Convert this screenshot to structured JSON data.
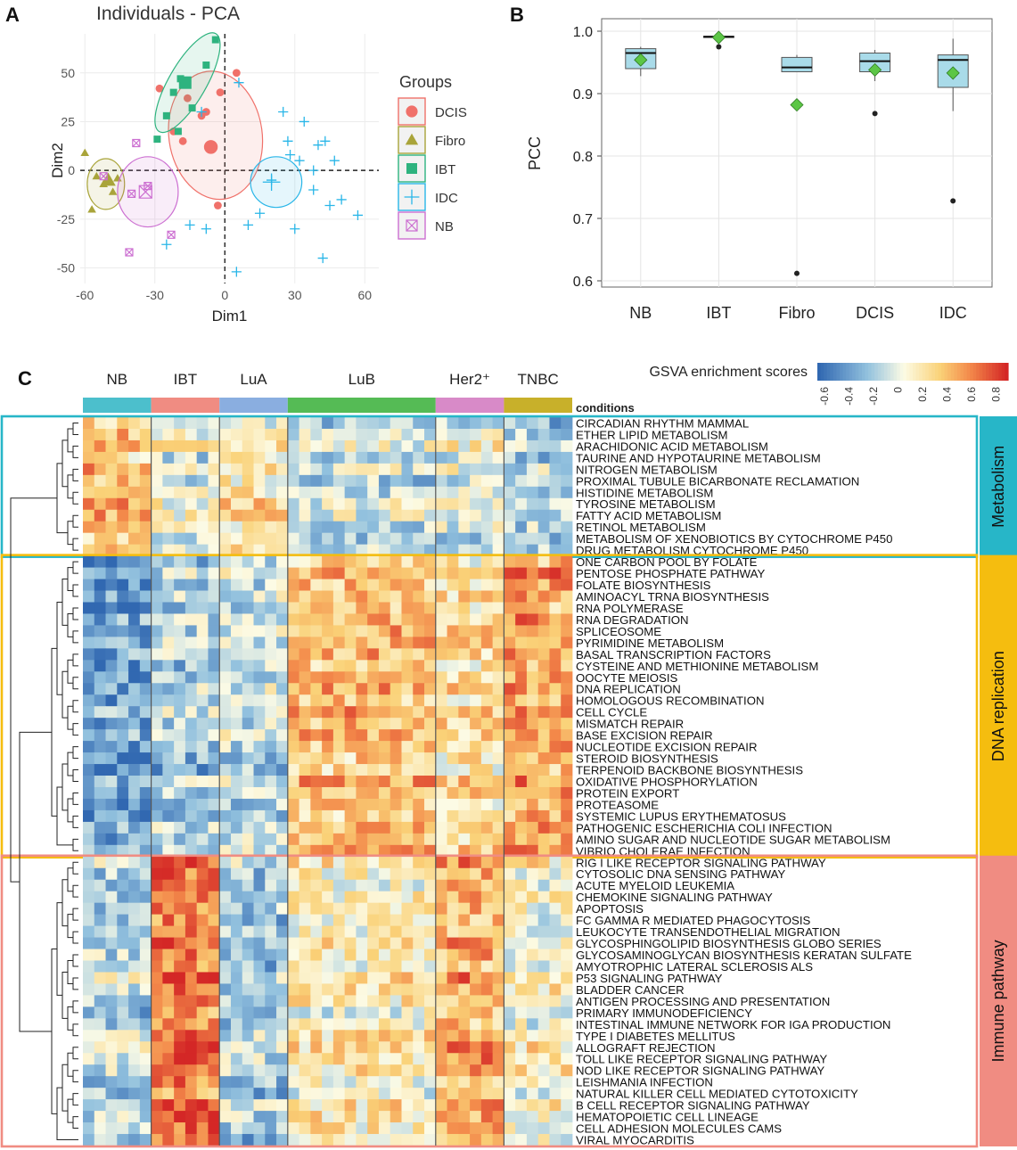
{
  "chart_data": [
    {
      "panel": "A",
      "type": "scatter",
      "title": "Individuals - PCA",
      "xlabel": "Dim1",
      "ylabel": "Dim2",
      "xlim": [
        -62,
        66
      ],
      "ylim": [
        -58,
        70
      ],
      "xticks": [
        -60,
        -30,
        0,
        30,
        60
      ],
      "yticks": [
        50,
        25,
        0,
        -25,
        -50
      ],
      "legend_title": "Groups",
      "legend_position": "right",
      "groups": [
        {
          "name": "DCIS",
          "color": "#f0716a",
          "marker": "circle",
          "points": [
            [
              -28,
              42
            ],
            [
              -16,
              37
            ],
            [
              -8,
              30
            ],
            [
              -2,
              40
            ],
            [
              5,
              50
            ],
            [
              -18,
              15
            ],
            [
              -10,
              28
            ],
            [
              -3,
              -18
            ],
            [
              -22,
              20
            ]
          ],
          "centroid": [
            -6,
            12
          ]
        },
        {
          "name": "Fibro",
          "color": "#a9a43a",
          "marker": "triangle",
          "points": [
            [
              -60,
              9
            ],
            [
              -52,
              -7
            ],
            [
              -46,
              -4
            ],
            [
              -57,
              -20
            ],
            [
              -48,
              -11
            ],
            [
              -55,
              -3
            ]
          ],
          "centroid": [
            -50,
            -5
          ]
        },
        {
          "name": "IBT",
          "color": "#2eb37f",
          "marker": "square",
          "points": [
            [
              -4,
              67
            ],
            [
              -8,
              54
            ],
            [
              -19,
              47
            ],
            [
              -29,
              16
            ],
            [
              -22,
              40
            ],
            [
              -14,
              32
            ],
            [
              -25,
              28
            ],
            [
              -20,
              20
            ]
          ],
          "centroid": [
            -17,
            45
          ]
        },
        {
          "name": "IDC",
          "color": "#29b6e8",
          "marker": "plus",
          "points": [
            [
              6,
              45
            ],
            [
              -10,
              30
            ],
            [
              27,
              15
            ],
            [
              34,
              25
            ],
            [
              40,
              13
            ],
            [
              28,
              8
            ],
            [
              20,
              -5
            ],
            [
              38,
              -10
            ],
            [
              45,
              -18
            ],
            [
              15,
              -22
            ],
            [
              -8,
              -30
            ],
            [
              5,
              -52
            ],
            [
              30,
              -30
            ],
            [
              42,
              -45
            ],
            [
              57,
              -23
            ],
            [
              38,
              0
            ],
            [
              47,
              5
            ],
            [
              25,
              30
            ],
            [
              -25,
              -38
            ],
            [
              -15,
              -28
            ],
            [
              10,
              -28
            ],
            [
              32,
              5
            ],
            [
              43,
              15
            ],
            [
              50,
              -15
            ]
          ],
          "centroid": [
            20,
            -6
          ]
        },
        {
          "name": "NB",
          "color": "#cc6fd1",
          "marker": "boxed-x",
          "points": [
            [
              -38,
              14
            ],
            [
              -33,
              -8
            ],
            [
              -40,
              -12
            ],
            [
              -41,
              -42
            ],
            [
              -23,
              -33
            ],
            [
              -52,
              -3
            ]
          ],
          "centroid": [
            -34,
            -11
          ]
        }
      ]
    },
    {
      "panel": "B",
      "type": "box",
      "ylabel": "PCC",
      "ylim": [
        0.59,
        1.02
      ],
      "yticks": [
        1.0,
        0.9,
        0.8,
        0.7,
        0.6
      ],
      "ytick_labels": [
        "1.0",
        "0.9",
        "0.8",
        "0.7",
        "0.6"
      ],
      "categories": [
        "NB",
        "IBT",
        "Fibro",
        "DCIS",
        "IDC"
      ],
      "boxes": [
        {
          "category": "NB",
          "q1": 0.94,
          "median": 0.965,
          "q3": 0.972,
          "whisker_low": 0.928,
          "whisker_high": 0.975,
          "mean": 0.954,
          "outliers": []
        },
        {
          "category": "IBT",
          "q1": 0.99,
          "median": 0.991,
          "q3": 0.992,
          "whisker_low": 0.99,
          "whisker_high": 0.993,
          "mean": 0.99,
          "outliers": [
            0.975
          ]
        },
        {
          "category": "Fibro",
          "q1": 0.935,
          "median": 0.942,
          "q3": 0.958,
          "whisker_low": 0.935,
          "whisker_high": 0.962,
          "mean": 0.882,
          "outliers": [
            0.612
          ]
        },
        {
          "category": "DCIS",
          "q1": 0.935,
          "median": 0.952,
          "q3": 0.965,
          "whisker_low": 0.92,
          "whisker_high": 0.97,
          "mean": 0.938,
          "outliers": [
            0.868
          ]
        },
        {
          "category": "IDC",
          "q1": 0.91,
          "median": 0.954,
          "q3": 0.962,
          "whisker_low": 0.872,
          "whisker_high": 0.988,
          "mean": 0.933,
          "outliers": [
            0.728
          ]
        }
      ]
    },
    {
      "panel": "C",
      "type": "heatmap",
      "colorbar_title": "GSVA enrichment scores",
      "colorbar_ticks": [
        "-0.6",
        "-0.4",
        "-0.2",
        "0",
        "0.2",
        "0.4",
        "0.6",
        "0.8"
      ],
      "conditions_label": "conditions",
      "conditions": [
        {
          "name": "NB",
          "color": "#4cbfcc",
          "columns": 6
        },
        {
          "name": "IBT",
          "color": "#f08c82",
          "columns": 6
        },
        {
          "name": "LuA",
          "color": "#8aaee0",
          "columns": 6
        },
        {
          "name": "LuB",
          "color": "#55bb55",
          "columns": 13
        },
        {
          "name": "Her2⁺",
          "color": "#d88ac8",
          "columns": 6
        },
        {
          "name": "TNBC",
          "color": "#c8b02a",
          "columns": 6
        }
      ],
      "modules": [
        {
          "name": "Metabolism",
          "color": "#27b6c8",
          "pathways": [
            "CIRCADIAN RHYTHM MAMMAL",
            "ETHER LIPID METABOLISM",
            "ARACHIDONIC ACID METABOLISM",
            "TAURINE AND HYPOTAURINE METABOLISM",
            "NITROGEN METABOLISM",
            "PROXIMAL TUBULE BICARBONATE RECLAMATION",
            "HISTIDINE METABOLISM",
            "TYROSINE METABOLISM",
            "FATTY ACID METABOLISM",
            "RETINOL METABOLISM",
            "METABOLISM OF XENOBIOTICS BY CYTOCHROME P450",
            "DRUG METABOLISM CYTOCHROME P450"
          ]
        },
        {
          "name": "DNA replication",
          "color": "#f5bd0f",
          "pathways": [
            "ONE CARBON POOL BY FOLATE",
            "PENTOSE PHOSPHATE PATHWAY",
            "FOLATE BIOSYNTHESIS",
            "AMINOACYL TRNA BIOSYNTHESIS",
            "RNA POLYMERASE",
            "RNA DEGRADATION",
            "SPLICEOSOME",
            "PYRIMIDINE METABOLISM",
            "BASAL TRANSCRIPTION FACTORS",
            "CYSTEINE AND METHIONINE METABOLISM",
            "OOCYTE MEIOSIS",
            "DNA REPLICATION",
            "HOMOLOGOUS RECOMBINATION",
            "CELL CYCLE",
            "MISMATCH REPAIR",
            "BASE EXCISION REPAIR",
            "NUCLEOTIDE EXCISION REPAIR",
            "STEROID BIOSYNTHESIS",
            "TERPENOID BACKBONE BIOSYNTHESIS",
            "OXIDATIVE PHOSPHORYLATION",
            "PROTEIN EXPORT",
            "PROTEASOME",
            "SYSTEMIC LUPUS ERYTHEMATOSUS",
            "PATHOGENIC ESCHERICHIA COLI INFECTION",
            "AMINO SUGAR AND NUCLEOTIDE SUGAR METABOLISM",
            "VIBRIO CHOLERAE INFECTION"
          ]
        },
        {
          "name": "Immune pathway",
          "color": "#f08c82",
          "pathways": [
            "RIG I LIKE RECEPTOR SIGNALING PATHWAY",
            "CYTOSOLIC DNA SENSING PATHWAY",
            "ACUTE MYELOID LEUKEMIA",
            "CHEMOKINE SIGNALING PATHWAY",
            "APOPTOSIS",
            "FC GAMMA R MEDIATED PHAGOCYTOSIS",
            "LEUKOCYTE TRANSENDOTHELIAL MIGRATION",
            "GLYCOSPHINGOLIPID BIOSYNTHESIS GLOBO SERIES",
            "GLYCOSAMINOGLYCAN BIOSYNTHESIS KERATAN SULFATE",
            "AMYOTROPHIC LATERAL SCLEROSIS ALS",
            "P53 SIGNALING PATHWAY",
            "BLADDER CANCER",
            "ANTIGEN PROCESSING AND PRESENTATION",
            "PRIMARY IMMUNODEFICIENCY",
            "INTESTINAL IMMUNE NETWORK FOR IGA PRODUCTION",
            "TYPE I DIABETES MELLITUS",
            "ALLOGRAFT REJECTION",
            "TOLL LIKE RECEPTOR SIGNALING PATHWAY",
            "NOD LIKE RECEPTOR SIGNALING PATHWAY",
            "LEISHMANIA INFECTION",
            "NATURAL KILLER CELL MEDIATED CYTOTOXICITY",
            "B CELL RECEPTOR SIGNALING PATHWAY",
            "HEMATOPOIETIC CELL LINEAGE",
            "CELL ADHESION MOLECULES CAMS",
            "VIRAL MYOCARDITIS"
          ]
        }
      ],
      "group_profile_note": "approximate mean GSVA score per module per condition group",
      "module_means": {
        "Metabolism": {
          "NB": 0.35,
          "IBT": -0.05,
          "LuA": 0.15,
          "LuB": -0.15,
          "Her2⁺": -0.05,
          "TNBC": -0.2
        },
        "DNA replication": {
          "NB": -0.45,
          "IBT": -0.25,
          "LuA": -0.15,
          "LuB": 0.35,
          "Her2⁺": 0.2,
          "TNBC": 0.45
        },
        "Immune pathway": {
          "NB": -0.2,
          "IBT": 0.6,
          "LuA": -0.25,
          "LuB": 0.1,
          "Her2⁺": 0.4,
          "TNBC": 0.05
        }
      }
    }
  ],
  "panel_labels": {
    "a": "A",
    "b": "B",
    "c": "C"
  }
}
